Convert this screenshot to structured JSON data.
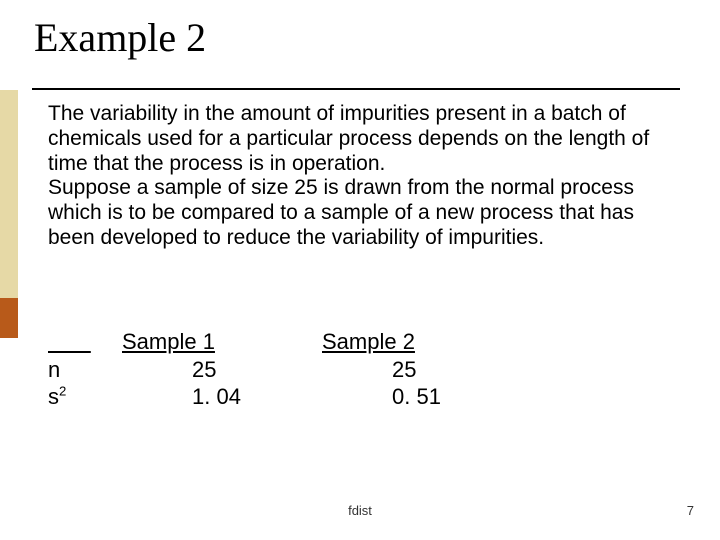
{
  "title": "Example 2",
  "accent": {
    "light": "#e6d9a6",
    "dark": "#b85a1a"
  },
  "para1": "The variability in the amount of impurities present in a batch of chemicals used for a particular process depends on the length of time that the process is in operation.",
  "para2": "Suppose a sample of size 25 is drawn from the normal process which is to be compared to a sample of a new process that has been developed to reduce the variability of impurities.",
  "table": {
    "headers": {
      "col2": "Sample 1",
      "col3": "Sample 2"
    },
    "rows": [
      {
        "label": "n",
        "v1": "25",
        "v2": "25"
      },
      {
        "label_base": "s",
        "label_sup": "2",
        "v1": "1. 04",
        "v2": "0. 51"
      }
    ]
  },
  "footer": "fdist",
  "page": "7"
}
